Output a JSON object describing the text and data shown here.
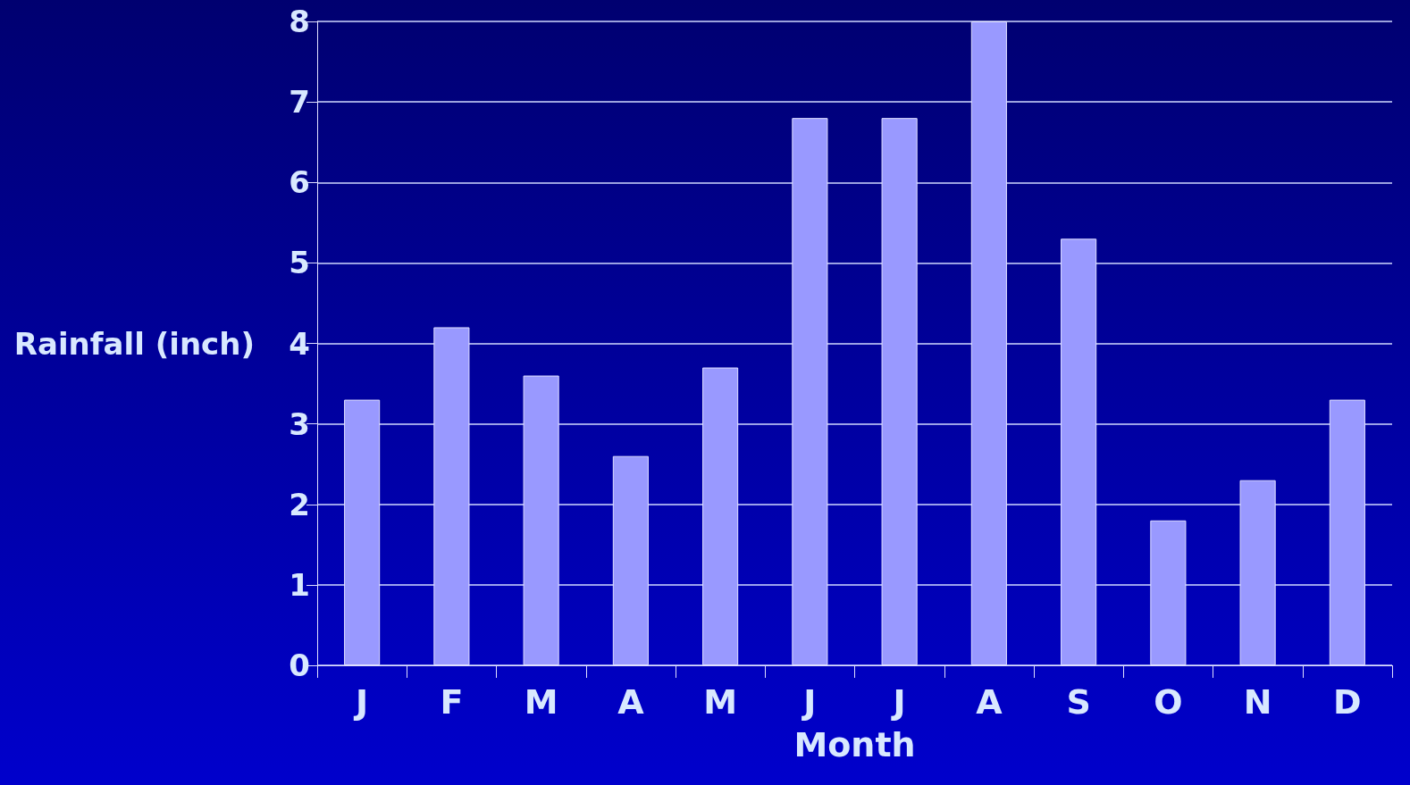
{
  "chart_data": {
    "type": "bar",
    "xlabel": "Month",
    "ylabel": "Rainfall (inch)",
    "categories": [
      "J",
      "F",
      "M",
      "A",
      "M",
      "J",
      "J",
      "A",
      "S",
      "O",
      "N",
      "D"
    ],
    "values": [
      3.3,
      4.2,
      3.6,
      2.6,
      3.7,
      6.8,
      6.8,
      8.0,
      5.3,
      1.8,
      2.3,
      3.3
    ],
    "color": "#9999ff",
    "ylim": [
      0,
      8
    ],
    "yticks": [
      0,
      1,
      2,
      3,
      4,
      5,
      6,
      7,
      8
    ],
    "grid": "y"
  }
}
